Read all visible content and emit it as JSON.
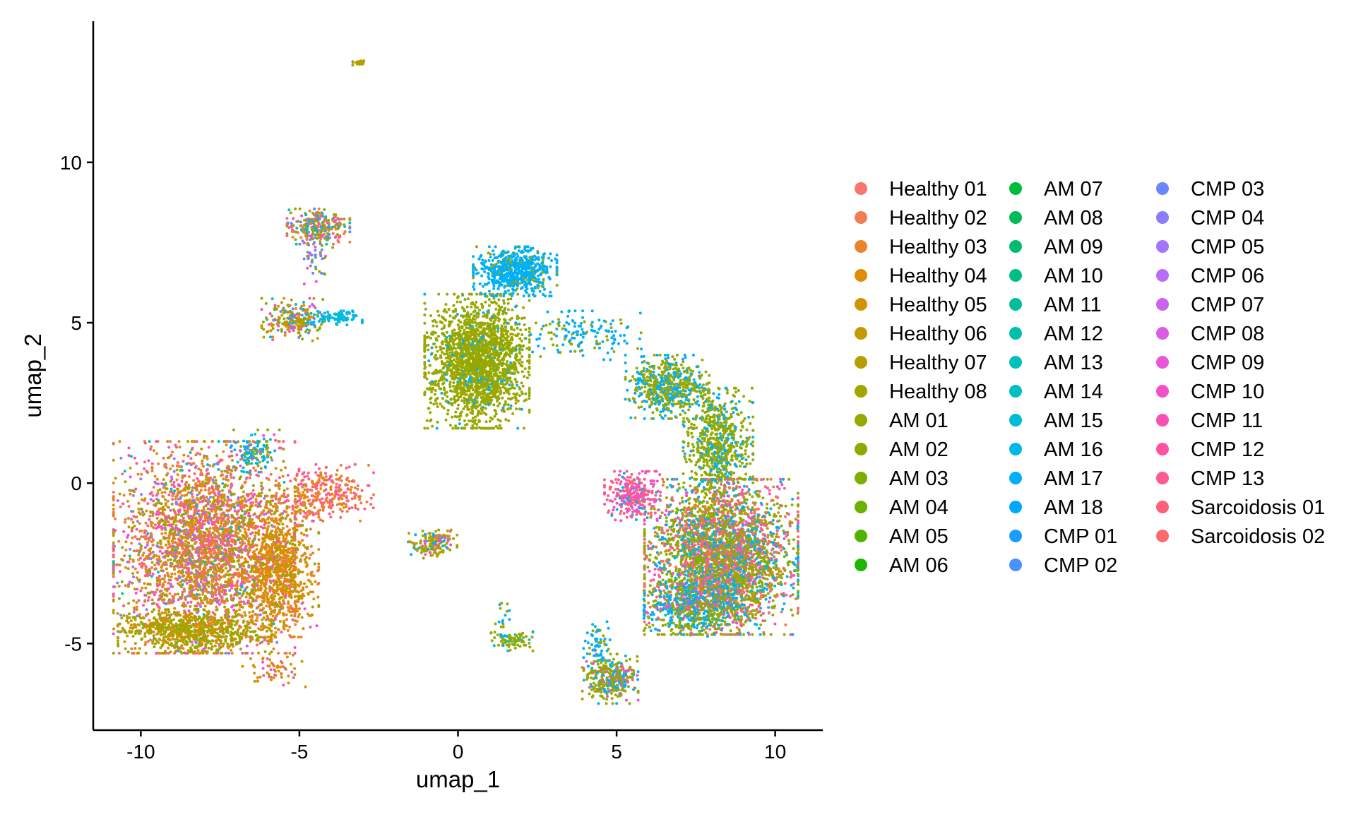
{
  "chart_data": {
    "type": "scatter",
    "title": "",
    "xlabel": "umap_1",
    "ylabel": "umap_2",
    "xlim": [
      -11.5,
      11.5
    ],
    "ylim": [
      -7.7,
      14.4
    ],
    "x_ticks": [
      -10,
      -5,
      0,
      5,
      10
    ],
    "x_tick_labels": [
      "-10",
      "-5",
      "0",
      "5",
      "10"
    ],
    "y_ticks": [
      -5,
      0,
      5,
      10
    ],
    "y_tick_labels": [
      "-5",
      "0",
      "5",
      "10"
    ],
    "grid": false,
    "legend_position": "right",
    "legend_columns": 3,
    "point_size": 2,
    "series": [
      {
        "name": "Healthy 01",
        "color": "#F8766D"
      },
      {
        "name": "Healthy 02",
        "color": "#F17D50"
      },
      {
        "name": "Healthy 03",
        "color": "#E9842C"
      },
      {
        "name": "Healthy 04",
        "color": "#DE8C00"
      },
      {
        "name": "Healthy 05",
        "color": "#D29300"
      },
      {
        "name": "Healthy 06",
        "color": "#C49A00"
      },
      {
        "name": "Healthy 07",
        "color": "#B3A000"
      },
      {
        "name": "Healthy 08",
        "color": "#A3A500"
      },
      {
        "name": "AM 01",
        "color": "#96A900"
      },
      {
        "name": "AM 02",
        "color": "#8AAB00"
      },
      {
        "name": "AM 03",
        "color": "#7CAE00"
      },
      {
        "name": "AM 04",
        "color": "#6AB100"
      },
      {
        "name": "AM 05",
        "color": "#4EB400"
      },
      {
        "name": "AM 06",
        "color": "#1CB700"
      },
      {
        "name": "AM 07",
        "color": "#00BA38"
      },
      {
        "name": "AM 08",
        "color": "#00BB57"
      },
      {
        "name": "AM 09",
        "color": "#00BC70"
      },
      {
        "name": "AM 10",
        "color": "#00BD85"
      },
      {
        "name": "AM 11",
        "color": "#00BE99"
      },
      {
        "name": "AM 12",
        "color": "#00BFAC"
      },
      {
        "name": "AM 13",
        "color": "#00C0BD"
      },
      {
        "name": "AM 14",
        "color": "#00BFC4"
      },
      {
        "name": "AM 15",
        "color": "#00BCD8"
      },
      {
        "name": "AM 16",
        "color": "#00B8E7"
      },
      {
        "name": "AM 17",
        "color": "#00B0F6"
      },
      {
        "name": "AM 18",
        "color": "#00A8FF"
      },
      {
        "name": "CMP 01",
        "color": "#1C9CFF"
      },
      {
        "name": "CMP 02",
        "color": "#4A90FF"
      },
      {
        "name": "CMP 03",
        "color": "#6A86FF"
      },
      {
        "name": "CMP 04",
        "color": "#8A7DFF"
      },
      {
        "name": "CMP 05",
        "color": "#A374FF"
      },
      {
        "name": "CMP 06",
        "color": "#B96CFA"
      },
      {
        "name": "CMP 07",
        "color": "#CC62F0"
      },
      {
        "name": "CMP 08",
        "color": "#DD5CE6"
      },
      {
        "name": "CMP 09",
        "color": "#E956D7"
      },
      {
        "name": "CMP 10",
        "color": "#F450C6"
      },
      {
        "name": "CMP 11",
        "color": "#FB4FB3"
      },
      {
        "name": "CMP 12",
        "color": "#FF53A0"
      },
      {
        "name": "CMP 13",
        "color": "#FF5A8E"
      },
      {
        "name": "Sarcoidosis 01",
        "color": "#FE617C"
      },
      {
        "name": "Sarcoidosis 02",
        "color": "#FC6A6D"
      }
    ],
    "clusters": [
      {
        "name": "top-tiny",
        "cx": -3.1,
        "cy": 13.1,
        "sx": 0.1,
        "sy": 0.05,
        "n": 25,
        "mix": [
          [
            "Healthy 07",
            1
          ]
        ]
      },
      {
        "name": "upper-left-top",
        "cx": -4.4,
        "cy": 8.0,
        "sx": 0.45,
        "sy": 0.25,
        "n": 260,
        "mix": [
          [
            "Healthy 03",
            3
          ],
          [
            "AM 01",
            3
          ],
          [
            "AM 14",
            2
          ],
          [
            "CMP 02",
            1
          ],
          [
            "CMP 10",
            1
          ],
          [
            "Sarcoidosis 01",
            1
          ]
        ]
      },
      {
        "name": "upper-left-stem",
        "cx": -4.5,
        "cy": 7.2,
        "sx": 0.25,
        "sy": 0.45,
        "n": 60,
        "mix": [
          [
            "CMP 03",
            2
          ],
          [
            "AM 02",
            1
          ],
          [
            "CMP 10",
            1
          ]
        ]
      },
      {
        "name": "upper-left-mid",
        "cx": -5.2,
        "cy": 5.1,
        "sx": 0.45,
        "sy": 0.3,
        "n": 230,
        "mix": [
          [
            "Healthy 05",
            3
          ],
          [
            "AM 02",
            3
          ],
          [
            "CMP 10",
            1
          ],
          [
            "CMP 03",
            1
          ],
          [
            "AM 14",
            1
          ]
        ]
      },
      {
        "name": "upper-left-tail",
        "cx": -3.9,
        "cy": 5.15,
        "sx": 0.4,
        "sy": 0.1,
        "n": 90,
        "mix": [
          [
            "AM 16",
            3
          ],
          [
            "AM 14",
            1
          ]
        ]
      },
      {
        "name": "left-main",
        "cx": -8.0,
        "cy": -2.0,
        "sx": 1.3,
        "sy": 1.5,
        "n": 3200,
        "mix": [
          [
            "Healthy 03",
            6
          ],
          [
            "Healthy 04",
            4
          ],
          [
            "Healthy 07",
            4
          ],
          [
            "CMP 10",
            4
          ],
          [
            "Sarcoidosis 02",
            3
          ],
          [
            "CMP 04",
            2
          ],
          [
            "AM 02",
            3
          ],
          [
            "AM 14",
            1
          ],
          [
            "CMP 12",
            2
          ]
        ]
      },
      {
        "name": "left-right-lobe",
        "cx": -5.6,
        "cy": -2.6,
        "sx": 0.55,
        "sy": 1.0,
        "n": 900,
        "mix": [
          [
            "Healthy 04",
            8
          ],
          [
            "Healthy 03",
            3
          ],
          [
            "AM 01",
            2
          ],
          [
            "CMP 10",
            1
          ]
        ]
      },
      {
        "name": "left-bottom",
        "cx": -8.3,
        "cy": -4.6,
        "sx": 1.1,
        "sy": 0.3,
        "n": 700,
        "mix": [
          [
            "Healthy 07",
            5
          ],
          [
            "AM 01",
            4
          ],
          [
            "Healthy 04",
            3
          ],
          [
            "AM 02",
            1
          ]
        ]
      },
      {
        "name": "left-arm",
        "cx": -4.2,
        "cy": -0.3,
        "sx": 0.7,
        "sy": 0.4,
        "n": 300,
        "mix": [
          [
            "Healthy 03",
            3
          ],
          [
            "Sarcoidosis 01",
            3
          ],
          [
            "CMP 12",
            2
          ],
          [
            "Healthy 04",
            1
          ]
        ]
      },
      {
        "name": "left-top-bump",
        "cx": -6.4,
        "cy": 1.0,
        "sx": 0.35,
        "sy": 0.3,
        "n": 120,
        "mix": [
          [
            "AM 14",
            2
          ],
          [
            "AM 17",
            2
          ],
          [
            "AM 02",
            1
          ],
          [
            "CMP 10",
            1
          ]
        ]
      },
      {
        "name": "left-tail",
        "cx": -5.8,
        "cy": -5.8,
        "sx": 0.45,
        "sy": 0.25,
        "n": 60,
        "mix": [
          [
            "Healthy 04",
            3
          ],
          [
            "Healthy 07",
            1
          ],
          [
            "CMP 10",
            1
          ]
        ]
      },
      {
        "name": "center-big",
        "cx": 0.6,
        "cy": 3.8,
        "sx": 0.75,
        "sy": 0.95,
        "n": 2100,
        "mix": [
          [
            "AM 01",
            8
          ],
          [
            "Healthy 08",
            4
          ],
          [
            "AM 02",
            2
          ],
          [
            "AM 17",
            1
          ]
        ]
      },
      {
        "name": "center-top",
        "cx": 1.8,
        "cy": 6.6,
        "sx": 0.6,
        "sy": 0.35,
        "n": 650,
        "mix": [
          [
            "AM 17",
            8
          ],
          [
            "AM 01",
            1
          ]
        ]
      },
      {
        "name": "center-bridge",
        "cx": 3.8,
        "cy": 4.6,
        "sx": 0.9,
        "sy": 0.35,
        "n": 150,
        "mix": [
          [
            "AM 17",
            4
          ],
          [
            "AM 01",
            2
          ]
        ]
      },
      {
        "name": "right-arc",
        "cx": 6.6,
        "cy": 3.0,
        "sx": 0.6,
        "sy": 0.45,
        "n": 600,
        "mix": [
          [
            "AM 01",
            5
          ],
          [
            "AM 17",
            4
          ],
          [
            "Healthy 08",
            1
          ]
        ]
      },
      {
        "name": "right-mid",
        "cx": 8.2,
        "cy": 1.2,
        "sx": 0.5,
        "sy": 0.8,
        "n": 700,
        "mix": [
          [
            "AM 01",
            6
          ],
          [
            "AM 02",
            1
          ],
          [
            "AM 17",
            2
          ]
        ]
      },
      {
        "name": "right-main",
        "cx": 8.3,
        "cy": -2.3,
        "sx": 1.1,
        "sy": 1.1,
        "n": 3500,
        "mix": [
          [
            "AM 01",
            7
          ],
          [
            "Sarcoidosis 02",
            3
          ],
          [
            "CMP 10",
            2
          ],
          [
            "AM 16",
            2
          ],
          [
            "AM 17",
            2
          ],
          [
            "Healthy 03",
            1
          ],
          [
            "AM 02",
            2
          ],
          [
            "CMP 12",
            1
          ]
        ]
      },
      {
        "name": "right-left-edge",
        "cx": 5.5,
        "cy": -0.4,
        "sx": 0.4,
        "sy": 0.35,
        "n": 300,
        "mix": [
          [
            "CMP 10",
            3
          ],
          [
            "Sarcoidosis 01",
            3
          ],
          [
            "AM 17",
            1
          ]
        ]
      },
      {
        "name": "right-lower",
        "cx": 7.4,
        "cy": -3.9,
        "sx": 0.7,
        "sy": 0.4,
        "n": 500,
        "mix": [
          [
            "AM 17",
            3
          ],
          [
            "AM 01",
            3
          ],
          [
            "CMP 10",
            1
          ]
        ]
      },
      {
        "name": "small-center-left",
        "cx": -0.8,
        "cy": -1.9,
        "sx": 0.35,
        "sy": 0.2,
        "n": 160,
        "mix": [
          [
            "Healthy 07",
            3
          ],
          [
            "AM 01",
            2
          ],
          [
            "AM 17",
            1
          ],
          [
            "CMP 10",
            1
          ]
        ]
      },
      {
        "name": "small-center-low",
        "cx": 1.7,
        "cy": -4.9,
        "sx": 0.3,
        "sy": 0.15,
        "n": 90,
        "mix": [
          [
            "AM 01",
            3
          ],
          [
            "AM 14",
            1
          ]
        ]
      },
      {
        "name": "small-center-stem",
        "cx": 1.4,
        "cy": -4.4,
        "sx": 0.1,
        "sy": 0.3,
        "n": 20,
        "mix": [
          [
            "AM 17",
            1
          ],
          [
            "AM 01",
            1
          ]
        ]
      },
      {
        "name": "bottom-right-small",
        "cx": 4.8,
        "cy": -6.1,
        "sx": 0.4,
        "sy": 0.35,
        "n": 320,
        "mix": [
          [
            "AM 01",
            5
          ],
          [
            "AM 17",
            2
          ],
          [
            "CMP 10",
            1
          ]
        ]
      },
      {
        "name": "bottom-right-stem",
        "cx": 4.4,
        "cy": -5.0,
        "sx": 0.2,
        "sy": 0.35,
        "n": 60,
        "mix": [
          [
            "AM 17",
            2
          ],
          [
            "AM 01",
            1
          ]
        ]
      }
    ]
  }
}
